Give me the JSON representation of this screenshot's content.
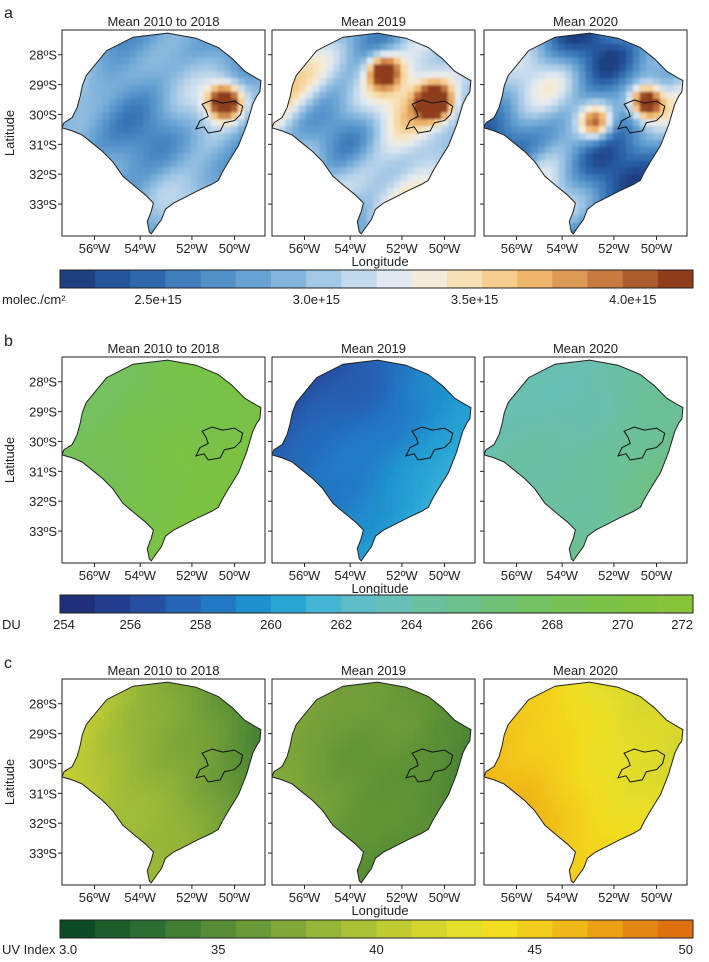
{
  "chart_data": [
    {
      "type": "heatmap",
      "panel": "a",
      "maps": [
        {
          "title": "Mean 2010 to 2018",
          "scheme": "blue_orange",
          "base": 0.32,
          "var": 0.38,
          "hot": [
            [
              0.8,
              0.35,
              0.9
            ]
          ]
        },
        {
          "title": "Mean 2019",
          "scheme": "blue_orange",
          "base": 0.46,
          "var": 0.65,
          "hot": [
            [
              0.8,
              0.35,
              0.9
            ],
            [
              0.55,
              0.2,
              0.7
            ]
          ]
        },
        {
          "title": "Mean 2020",
          "scheme": "blue_orange",
          "base": 0.28,
          "var": 0.7,
          "hot": [
            [
              0.8,
              0.35,
              0.9
            ],
            [
              0.55,
              0.45,
              0.6
            ]
          ]
        }
      ],
      "ylabel": "Latitude",
      "xlabel": "Longitude",
      "y_ticks": [
        "28ºS",
        "29ºS",
        "30ºS",
        "31ºS",
        "32ºS",
        "33ºS"
      ],
      "x_ticks": [
        "56ºW",
        "54ºW",
        "52ºW",
        "50ºW"
      ],
      "colorbar": {
        "unit_label": "molec./cm²",
        "tick_labels": [
          "2.5e+15",
          "3.0e+15",
          "3.5e+15",
          "4.0e+15"
        ],
        "tick_fracs": [
          0.155,
          0.405,
          0.655,
          0.905
        ],
        "colors": [
          "#1f3f80",
          "#24549a",
          "#2f68ac",
          "#3f7dbb",
          "#5290c8",
          "#67a2d2",
          "#84b5dc",
          "#a3c8e5",
          "#c3d9ec",
          "#e0e9f1",
          "#f3ecdc",
          "#f8e0b5",
          "#f6cd8f",
          "#eeb56c",
          "#dd9a56",
          "#c77b41",
          "#ad5c2e",
          "#8e3c1a"
        ]
      }
    },
    {
      "type": "heatmap",
      "panel": "b",
      "maps": [
        {
          "title": "Mean 2010 to 2018",
          "scheme": "blue_green",
          "field": [
            0.74,
            0.9,
            0.86,
            0.93
          ]
        },
        {
          "title": "Mean 2019",
          "scheme": "blue_green",
          "field": [
            0.05,
            0.3,
            0.25,
            0.45
          ]
        },
        {
          "title": "Mean 2020",
          "scheme": "blue_green",
          "field": [
            0.5,
            0.6,
            0.58,
            0.68
          ]
        }
      ],
      "ylabel": "Latitude",
      "xlabel": "Longitude",
      "y_ticks": [
        "28ºS",
        "29ºS",
        "30ºS",
        "31ºS",
        "32ºS",
        "33ºS"
      ],
      "x_ticks": [
        "56ºW",
        "54ºW",
        "52ºW",
        "50ºW"
      ],
      "colorbar": {
        "unit_label": "DU",
        "range": [
          254,
          272
        ],
        "tick_labels": [
          "254",
          "256",
          "258",
          "260",
          "262",
          "264",
          "266",
          "268",
          "270",
          "272"
        ],
        "colors": [
          "#1f2f7a",
          "#233d8f",
          "#2550a2",
          "#2563b4",
          "#2378c4",
          "#1f90ce",
          "#2aa6d5",
          "#45b5d3",
          "#5fbdc8",
          "#68bfb5",
          "#6bc09f",
          "#6dc08b",
          "#70c076",
          "#74c163",
          "#76c152",
          "#7ac245",
          "#80c23d",
          "#87c437"
        ]
      }
    },
    {
      "type": "heatmap",
      "panel": "c",
      "maps": [
        {
          "title": "Mean 2010 to 2018",
          "scheme": "green_orange",
          "field": [
            0.58,
            0.15,
            0.5,
            0.32
          ]
        },
        {
          "title": "Mean 2019",
          "scheme": "green_orange",
          "field": [
            0.38,
            0.22,
            0.32,
            0.2
          ]
        },
        {
          "title": "Mean 2020",
          "scheme": "green_orange",
          "field": [
            0.78,
            0.55,
            0.93,
            0.62
          ]
        }
      ],
      "ylabel": "Latitude",
      "xlabel": "Longitude",
      "y_ticks": [
        "28ºS",
        "29ºS",
        "30ºS",
        "31ºS",
        "32ºS",
        "33ºS"
      ],
      "x_ticks": [
        "56ºW",
        "54ºW",
        "52ºW",
        "50ºW"
      ],
      "colorbar": {
        "unit_label": "UV Index 3.0",
        "range": [
          30,
          50
        ],
        "tick_labels": [
          "35",
          "40",
          "45",
          "50"
        ],
        "tick_values": [
          35,
          40,
          45,
          50
        ],
        "colors": [
          "#0d4b26",
          "#1e5c2c",
          "#2e6d31",
          "#417d33",
          "#558c35",
          "#6a9a37",
          "#80a838",
          "#96b638",
          "#acc236",
          "#c1cc32",
          "#d4d62e",
          "#e5de2a",
          "#f2dd20",
          "#f3cd1b",
          "#f0b818",
          "#eba015",
          "#e48612",
          "#de7010"
        ]
      }
    }
  ]
}
